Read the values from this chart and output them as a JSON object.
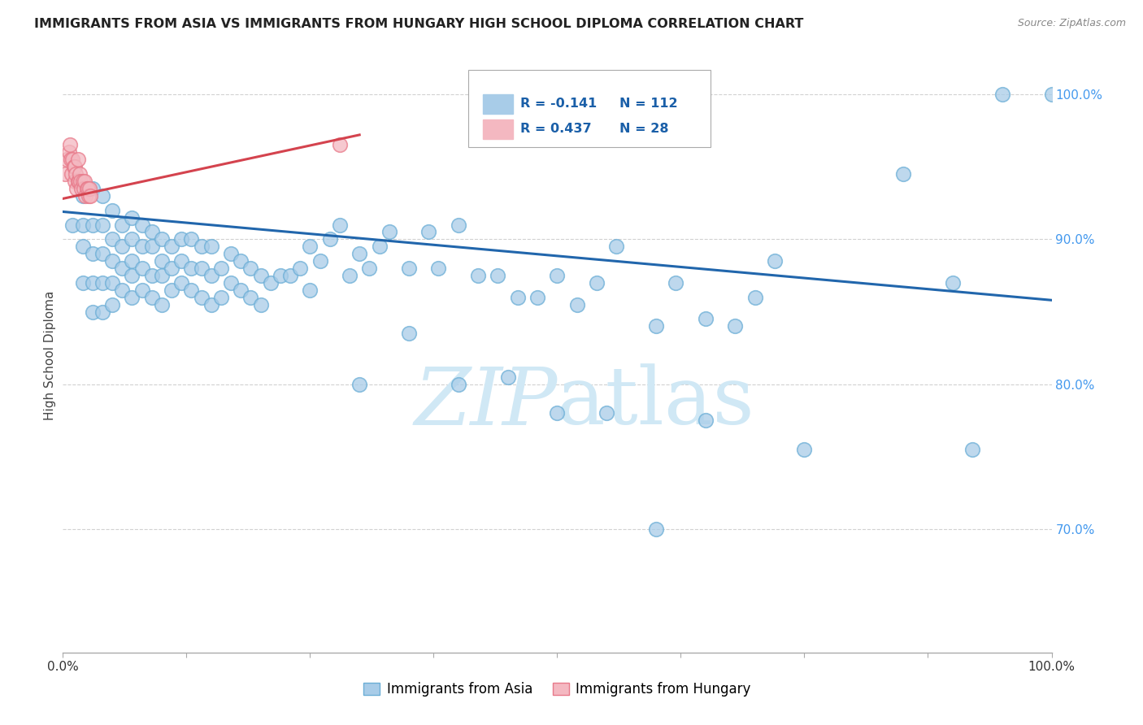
{
  "title": "IMMIGRANTS FROM ASIA VS IMMIGRANTS FROM HUNGARY HIGH SCHOOL DIPLOMA CORRELATION CHART",
  "source": "Source: ZipAtlas.com",
  "ylabel": "High School Diploma",
  "xlim": [
    0,
    1.0
  ],
  "ylim": [
    0.615,
    1.025
  ],
  "y_tick_labels_right": [
    "100.0%",
    "90.0%",
    "80.0%",
    "70.0%"
  ],
  "y_tick_vals_right": [
    1.0,
    0.9,
    0.8,
    0.7
  ],
  "blue_color": "#a8cce8",
  "blue_edge_color": "#6baed6",
  "pink_color": "#f4b8c1",
  "pink_edge_color": "#e87a8a",
  "blue_line_color": "#2166ac",
  "pink_line_color": "#d4434e",
  "watermark_color": "#d0e8f5",
  "background_color": "#ffffff",
  "grid_color": "#cccccc",
  "blue_scatter_x": [
    0.01,
    0.02,
    0.02,
    0.02,
    0.02,
    0.03,
    0.03,
    0.03,
    0.03,
    0.03,
    0.04,
    0.04,
    0.04,
    0.04,
    0.04,
    0.05,
    0.05,
    0.05,
    0.05,
    0.05,
    0.06,
    0.06,
    0.06,
    0.06,
    0.07,
    0.07,
    0.07,
    0.07,
    0.07,
    0.08,
    0.08,
    0.08,
    0.08,
    0.09,
    0.09,
    0.09,
    0.09,
    0.1,
    0.1,
    0.1,
    0.1,
    0.11,
    0.11,
    0.11,
    0.12,
    0.12,
    0.12,
    0.13,
    0.13,
    0.13,
    0.14,
    0.14,
    0.14,
    0.15,
    0.15,
    0.15,
    0.16,
    0.16,
    0.17,
    0.17,
    0.18,
    0.18,
    0.19,
    0.19,
    0.2,
    0.2,
    0.21,
    0.22,
    0.23,
    0.24,
    0.25,
    0.25,
    0.26,
    0.27,
    0.28,
    0.29,
    0.3,
    0.31,
    0.32,
    0.33,
    0.35,
    0.37,
    0.38,
    0.4,
    0.42,
    0.44,
    0.46,
    0.48,
    0.5,
    0.52,
    0.54,
    0.56,
    0.6,
    0.62,
    0.65,
    0.68,
    0.72,
    0.75,
    0.85,
    0.9,
    0.92,
    0.95,
    0.6,
    0.5,
    0.55,
    0.45,
    0.4,
    0.35,
    0.3,
    0.65,
    0.7,
    1.0
  ],
  "blue_scatter_y": [
    0.91,
    0.93,
    0.91,
    0.895,
    0.87,
    0.935,
    0.91,
    0.89,
    0.87,
    0.85,
    0.93,
    0.91,
    0.89,
    0.87,
    0.85,
    0.92,
    0.9,
    0.885,
    0.87,
    0.855,
    0.91,
    0.895,
    0.88,
    0.865,
    0.915,
    0.9,
    0.885,
    0.875,
    0.86,
    0.91,
    0.895,
    0.88,
    0.865,
    0.905,
    0.895,
    0.875,
    0.86,
    0.9,
    0.885,
    0.875,
    0.855,
    0.895,
    0.88,
    0.865,
    0.9,
    0.885,
    0.87,
    0.9,
    0.88,
    0.865,
    0.895,
    0.88,
    0.86,
    0.895,
    0.875,
    0.855,
    0.88,
    0.86,
    0.89,
    0.87,
    0.885,
    0.865,
    0.88,
    0.86,
    0.875,
    0.855,
    0.87,
    0.875,
    0.875,
    0.88,
    0.895,
    0.865,
    0.885,
    0.9,
    0.91,
    0.875,
    0.89,
    0.88,
    0.895,
    0.905,
    0.88,
    0.905,
    0.88,
    0.91,
    0.875,
    0.875,
    0.86,
    0.86,
    0.875,
    0.855,
    0.87,
    0.895,
    0.84,
    0.87,
    0.775,
    0.84,
    0.885,
    0.755,
    0.945,
    0.87,
    0.755,
    1.0,
    0.7,
    0.78,
    0.78,
    0.805,
    0.8,
    0.835,
    0.8,
    0.845,
    0.86,
    1.0
  ],
  "pink_scatter_x": [
    0.002,
    0.004,
    0.006,
    0.007,
    0.008,
    0.009,
    0.01,
    0.011,
    0.012,
    0.012,
    0.013,
    0.014,
    0.015,
    0.015,
    0.016,
    0.017,
    0.018,
    0.019,
    0.02,
    0.021,
    0.022,
    0.023,
    0.024,
    0.025,
    0.026,
    0.027,
    0.028,
    0.28
  ],
  "pink_scatter_y": [
    0.945,
    0.955,
    0.96,
    0.965,
    0.955,
    0.945,
    0.955,
    0.95,
    0.95,
    0.94,
    0.945,
    0.935,
    0.94,
    0.955,
    0.94,
    0.945,
    0.94,
    0.935,
    0.94,
    0.935,
    0.94,
    0.93,
    0.935,
    0.935,
    0.93,
    0.935,
    0.93,
    0.965
  ],
  "blue_trendline_x": [
    0.0,
    1.0
  ],
  "blue_trendline_y": [
    0.919,
    0.858
  ],
  "pink_trendline_x": [
    0.0,
    0.3
  ],
  "pink_trendline_y": [
    0.928,
    0.972
  ]
}
